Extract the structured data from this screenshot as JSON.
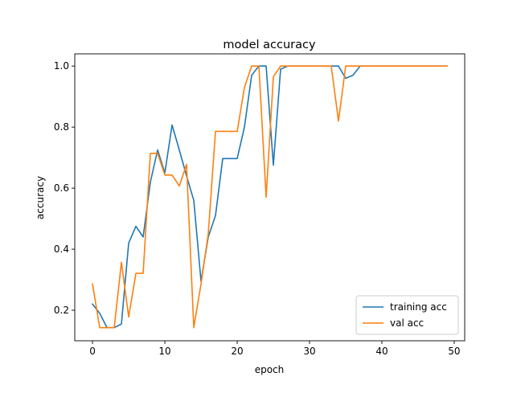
{
  "chart_data": {
    "type": "line",
    "title": "model accuracy",
    "xlabel": "epoch",
    "ylabel": "accuracy",
    "xlim": [
      -2.45,
      51.45
    ],
    "ylim": [
      0.1,
      1.04
    ],
    "xticks": [
      0,
      10,
      20,
      30,
      40,
      50
    ],
    "yticks": [
      0.2,
      0.4,
      0.6,
      0.8,
      1.0
    ],
    "ytick_labels": [
      "0.2",
      "0.4",
      "0.6",
      "0.8",
      "1.0"
    ],
    "grid": false,
    "legend_position": "lower-right",
    "x": [
      0,
      1,
      2,
      3,
      4,
      5,
      6,
      7,
      8,
      9,
      10,
      11,
      12,
      13,
      14,
      15,
      16,
      17,
      18,
      19,
      20,
      21,
      22,
      23,
      24,
      25,
      26,
      27,
      28,
      29,
      30,
      31,
      32,
      33,
      34,
      35,
      36,
      37,
      38,
      39,
      40,
      41,
      42,
      43,
      44,
      45,
      46,
      47,
      48,
      49
    ],
    "series": [
      {
        "name": "training acc",
        "color": "#1f77b4",
        "values": [
          0.22,
          0.19,
          0.143,
          0.143,
          0.155,
          0.42,
          0.475,
          0.44,
          0.62,
          0.725,
          0.65,
          0.807,
          0.725,
          0.64,
          0.56,
          0.295,
          0.44,
          0.51,
          0.697,
          0.697,
          0.697,
          0.8,
          0.97,
          1.0,
          1.0,
          0.675,
          0.99,
          1.0,
          1.0,
          1.0,
          1.0,
          1.0,
          1.0,
          1.0,
          1.0,
          0.96,
          0.97,
          1.0,
          1.0,
          1.0,
          1.0,
          1.0,
          1.0,
          1.0,
          1.0,
          1.0,
          1.0,
          1.0,
          1.0,
          1.0
        ]
      },
      {
        "name": "val acc",
        "color": "#ff7f0e",
        "values": [
          0.286,
          0.143,
          0.143,
          0.143,
          0.357,
          0.178,
          0.321,
          0.321,
          0.714,
          0.714,
          0.643,
          0.643,
          0.607,
          0.678,
          0.143,
          0.286,
          0.45,
          0.786,
          0.786,
          0.786,
          0.786,
          0.93,
          1.0,
          1.0,
          0.57,
          0.965,
          1.0,
          1.0,
          1.0,
          1.0,
          1.0,
          1.0,
          1.0,
          1.0,
          0.82,
          1.0,
          1.0,
          1.0,
          1.0,
          1.0,
          1.0,
          1.0,
          1.0,
          1.0,
          1.0,
          1.0,
          1.0,
          1.0,
          1.0,
          1.0
        ]
      }
    ]
  }
}
